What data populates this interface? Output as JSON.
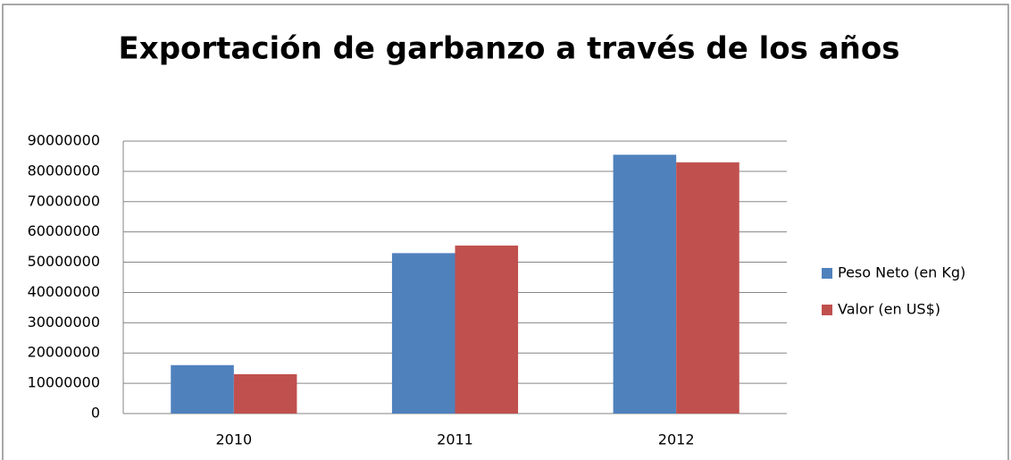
{
  "chart_data": {
    "type": "bar",
    "title": "Exportación de garbanzo a través de los años",
    "categories": [
      "2010",
      "2011",
      "2012"
    ],
    "series": [
      {
        "name": "Peso Neto (en Kg)",
        "color": "#4f81bd",
        "values": [
          16000000,
          53000000,
          85500000
        ]
      },
      {
        "name": "Valor (en US$)",
        "color": "#c0504d",
        "values": [
          13000000,
          55500000,
          83000000
        ]
      }
    ],
    "ylim": [
      0,
      90000000
    ],
    "yticks": [
      0,
      10000000,
      20000000,
      30000000,
      40000000,
      50000000,
      60000000,
      70000000,
      80000000,
      90000000
    ],
    "grid": true,
    "legend": "right"
  }
}
